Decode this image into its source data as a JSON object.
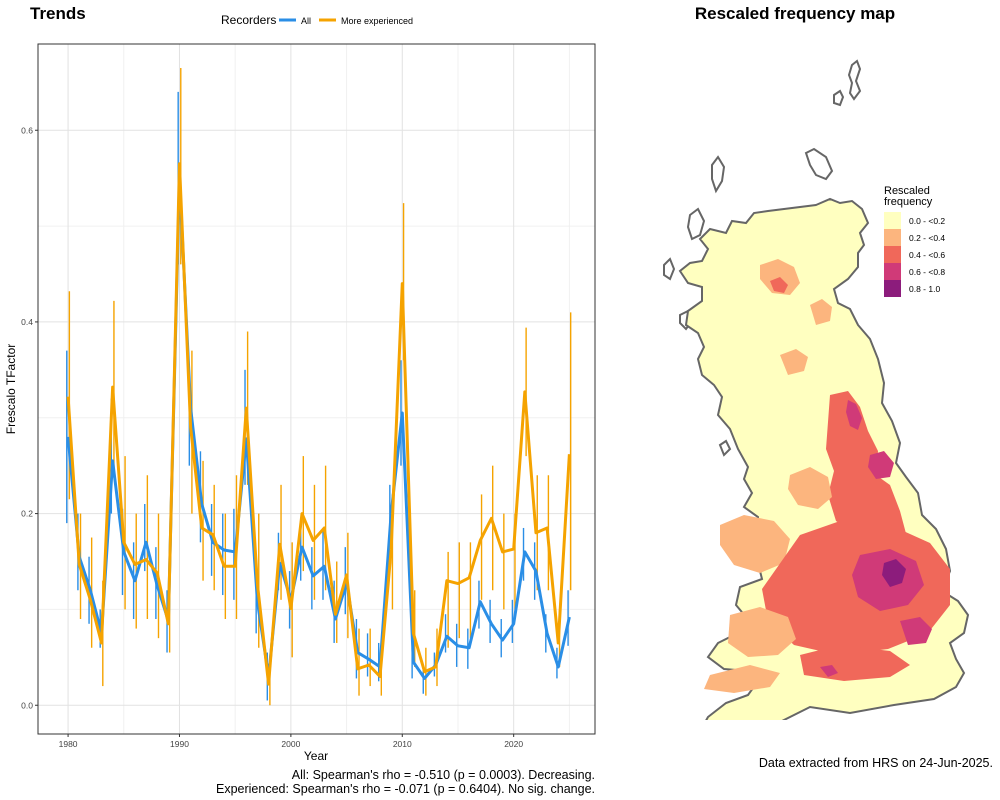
{
  "trends_title": "Trends",
  "map_title": "Rescaled frequency map",
  "legend": {
    "title": "Recorders",
    "items": [
      {
        "label": "All",
        "color": "#2a8ee6"
      },
      {
        "label": "More experienced",
        "color": "#f5a300"
      }
    ]
  },
  "chart_data": {
    "type": "line",
    "xlabel": "Year",
    "ylabel": "Frescalo TFactor",
    "xlim": [
      1978.8,
      1927
    ],
    "ylim": [
      -0.03,
      0.69
    ],
    "x_ticks": [
      "1980",
      "1990",
      "2000",
      "2010",
      "2020"
    ],
    "y_ticks": [
      "0.0",
      "0.2",
      "0.4",
      "0.6"
    ],
    "grid": true,
    "legend_position": "top",
    "x": [
      1980,
      1981,
      1982,
      1983,
      1984,
      1985,
      1986,
      1987,
      1988,
      1989,
      1990,
      1991,
      1992,
      1993,
      1994,
      1995,
      1996,
      1997,
      1998,
      1999,
      2000,
      2001,
      2002,
      2003,
      2004,
      2005,
      2006,
      2007,
      2008,
      2009,
      2010,
      2011,
      2012,
      2013,
      2014,
      2015,
      2016,
      2017,
      2018,
      2019,
      2020,
      2021,
      2022,
      2023,
      2024,
      2025
    ],
    "series": [
      {
        "name": "All",
        "values": [
          0.28,
          0.155,
          0.12,
          0.075,
          0.255,
          0.16,
          0.13,
          0.17,
          0.125,
          0.088,
          0.55,
          0.31,
          0.21,
          0.17,
          0.162,
          0.16,
          0.278,
          0.108,
          0.03,
          0.148,
          0.11,
          0.165,
          0.135,
          0.145,
          0.09,
          0.128,
          0.055,
          0.048,
          0.04,
          0.2,
          0.305,
          0.045,
          0.028,
          0.042,
          0.072,
          0.062,
          0.06,
          0.108,
          0.085,
          0.068,
          0.085,
          0.16,
          0.14,
          0.075,
          0.04,
          0.092
        ],
        "err_low": [
          0.19,
          0.12,
          0.085,
          0.06,
          0.2,
          0.115,
          0.09,
          0.14,
          0.09,
          0.055,
          0.46,
          0.25,
          0.17,
          0.135,
          0.115,
          0.11,
          0.23,
          0.075,
          0.005,
          0.12,
          0.08,
          0.13,
          0.1,
          0.11,
          0.065,
          0.095,
          0.028,
          0.03,
          0.025,
          0.17,
          0.25,
          0.028,
          0.012,
          0.03,
          0.055,
          0.04,
          0.038,
          0.08,
          0.065,
          0.05,
          0.065,
          0.13,
          0.11,
          0.055,
          0.028,
          0.062
        ],
        "err_high": [
          0.37,
          0.2,
          0.155,
          0.1,
          0.32,
          0.205,
          0.17,
          0.21,
          0.165,
          0.12,
          0.64,
          0.35,
          0.265,
          0.21,
          0.2,
          0.205,
          0.35,
          0.14,
          0.055,
          0.18,
          0.14,
          0.195,
          0.165,
          0.185,
          0.13,
          0.165,
          0.09,
          0.075,
          0.065,
          0.23,
          0.36,
          0.06,
          0.042,
          0.055,
          0.095,
          0.085,
          0.08,
          0.13,
          0.11,
          0.09,
          0.11,
          0.185,
          0.17,
          0.095,
          0.06,
          0.12
        ]
      },
      {
        "name": "More experienced",
        "values": [
          0.322,
          0.147,
          0.11,
          0.065,
          0.332,
          0.17,
          0.147,
          0.152,
          0.138,
          0.085,
          0.565,
          0.29,
          0.185,
          0.178,
          0.145,
          0.145,
          0.31,
          0.126,
          0.022,
          0.168,
          0.101,
          0.2,
          0.172,
          0.185,
          0.095,
          0.136,
          0.038,
          0.042,
          0.03,
          0.162,
          0.44,
          0.075,
          0.035,
          0.04,
          0.13,
          0.127,
          0.133,
          0.172,
          0.195,
          0.16,
          0.163,
          0.327,
          0.18,
          0.185,
          0.065,
          0.262
        ],
        "err_low": [
          0.215,
          0.09,
          0.06,
          0.02,
          0.24,
          0.1,
          0.08,
          0.09,
          0.07,
          0.055,
          0.46,
          0.2,
          0.13,
          0.12,
          0.09,
          0.09,
          0.23,
          0.06,
          0.0,
          0.11,
          0.05,
          0.14,
          0.11,
          0.12,
          0.065,
          0.07,
          0.01,
          0.02,
          0.01,
          0.1,
          0.36,
          0.04,
          0.01,
          0.02,
          0.06,
          0.07,
          0.07,
          0.11,
          0.12,
          0.1,
          0.1,
          0.26,
          0.12,
          0.12,
          0.04,
          0.12
        ],
        "err_high": [
          0.432,
          0.2,
          0.175,
          0.13,
          0.422,
          0.26,
          0.2,
          0.24,
          0.2,
          0.115,
          0.665,
          0.37,
          0.255,
          0.23,
          0.2,
          0.24,
          0.39,
          0.2,
          0.05,
          0.23,
          0.17,
          0.26,
          0.23,
          0.25,
          0.15,
          0.18,
          0.08,
          0.08,
          0.06,
          0.22,
          0.524,
          0.12,
          0.06,
          0.08,
          0.16,
          0.17,
          0.17,
          0.22,
          0.25,
          0.2,
          0.2,
          0.394,
          0.24,
          0.24,
          0.1,
          0.41
        ]
      }
    ]
  },
  "stats": {
    "all_line": "All: Spearman's rho = -0.510 (p = 0.0003). Decreasing.",
    "exp_line": "Experienced: Spearman's rho = -0.071 (p = 0.6404). No sig. change."
  },
  "map_legend": {
    "title_line1": "Rescaled",
    "title_line2": "frequency",
    "classes": [
      {
        "label": "0.0 - <0.2",
        "color": "#ffffc0"
      },
      {
        "label": "0.2 - <0.4",
        "color": "#fcb57e"
      },
      {
        "label": "0.4 - <0.6",
        "color": "#f0685a"
      },
      {
        "label": "0.6 - <0.8",
        "color": "#d03a78"
      },
      {
        "label": "0.8 - 1.0",
        "color": "#8c1c7c"
      }
    ]
  },
  "extracted_note": "Data extracted from HRS on 24-Jun-2025."
}
